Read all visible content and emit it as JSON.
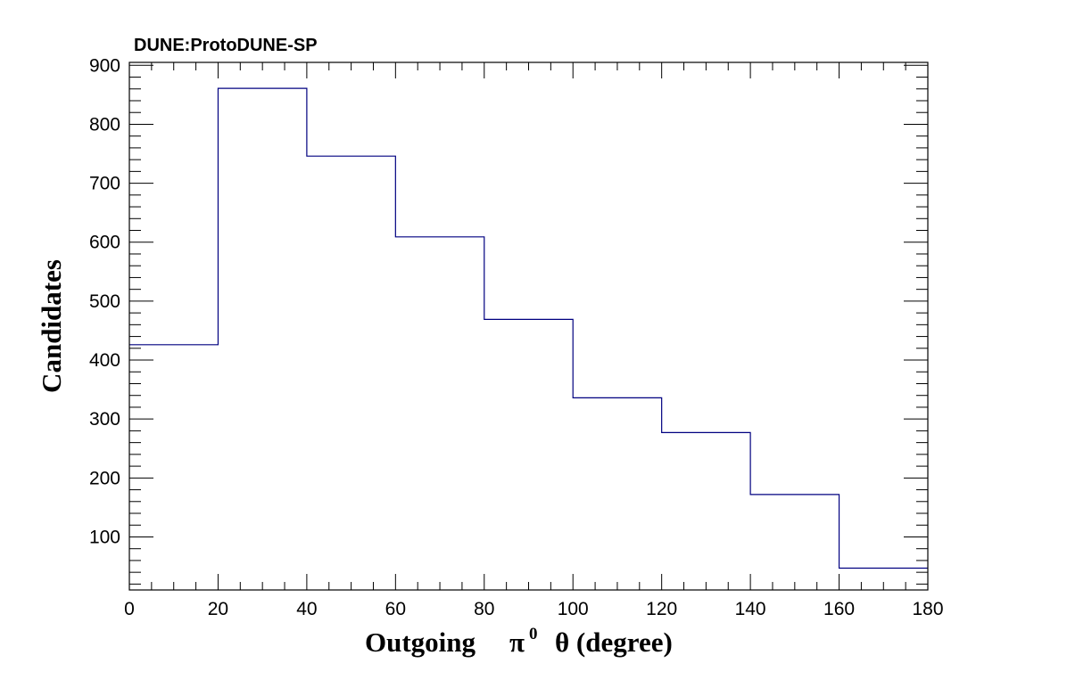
{
  "experiment_label": "DUNE:ProtoDUNE-SP",
  "chart_data": {
    "type": "histogram",
    "xlabel": {
      "prefix": "Outgoing",
      "particle": "π",
      "superscript": "0",
      "suffix": "θ (degree)"
    },
    "ylabel": "Candidates",
    "bin_edges": [
      0,
      20,
      40,
      60,
      80,
      100,
      120,
      140,
      160,
      180
    ],
    "values": [
      426,
      861,
      746,
      609,
      469,
      336,
      277,
      172,
      47
    ],
    "xlim": [
      0,
      180
    ],
    "ylim": [
      10,
      905
    ],
    "xticks": [
      0,
      20,
      40,
      60,
      80,
      100,
      120,
      140,
      160,
      180
    ],
    "yticks": [
      100,
      200,
      300,
      400,
      500,
      600,
      700,
      800,
      900
    ],
    "line_color": "#000080",
    "grid": false
  }
}
